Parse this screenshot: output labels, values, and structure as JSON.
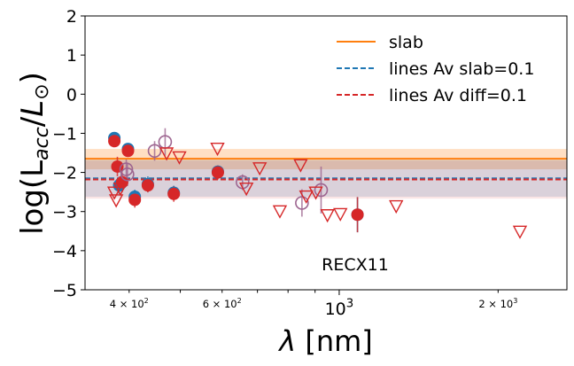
{
  "chart_data": {
    "type": "scatter",
    "title": "",
    "xlabel": "λ [nm]",
    "ylabel": "log(L_acc/L_⊙)",
    "xscale": "log",
    "xlim": [
      330,
      2700
    ],
    "ylim": [
      -5,
      2
    ],
    "yticks": [
      2,
      1,
      0,
      -1,
      -2,
      -3,
      -4,
      -5
    ],
    "ytick_labels": [
      "2",
      "1",
      "0",
      "−1",
      "−2",
      "−3",
      "−4",
      "−5"
    ],
    "xticks_major": [
      {
        "value": 1000,
        "label": "10",
        "sup": "3"
      }
    ],
    "xticks_minor_labeled": [
      {
        "value": 400,
        "label": "4 × 10",
        "sup": "2"
      },
      {
        "value": 600,
        "label": "6 × 10",
        "sup": "2"
      },
      {
        "value": 2000,
        "label": "2 × 10",
        "sup": "3"
      }
    ],
    "xticks_minor_unlabeled": [
      500,
      700,
      800,
      900
    ],
    "annotation": "RECX11",
    "grid": false,
    "legend_position": "upper right",
    "legend": [
      {
        "label": "slab",
        "style": "solid",
        "color": "#ff7f0e"
      },
      {
        "label": "lines Av slab=0.1",
        "style": "dashed",
        "color": "#1f77b4"
      },
      {
        "label": "lines Av diff=0.1",
        "style": "dashed",
        "color": "#d62728"
      }
    ],
    "bands": [
      {
        "name": "slab",
        "color": "#ff7f0e",
        "center": -1.65,
        "lower": -1.92,
        "upper": -1.4,
        "alpha": 0.25
      },
      {
        "name": "lines Av slab=0.1",
        "color": "#1f77b4",
        "center": -2.15,
        "lower": -2.62,
        "upper": -1.68,
        "alpha": 0.16
      },
      {
        "name": "lines Av diff=0.1",
        "color": "#d62728",
        "center": -2.18,
        "lower": -2.67,
        "upper": -1.7,
        "alpha": 0.12
      }
    ],
    "series": [
      {
        "color": "#1f77b4",
        "marker": "circle",
        "points": [
          {
            "x": 375,
            "y": -1.12,
            "err": 0.12
          },
          {
            "x": 383,
            "y": -2.33,
            "err": 0.22
          },
          {
            "x": 386,
            "y": -2.28,
            "err": 0.2
          },
          {
            "x": 398,
            "y": -1.4,
            "err": 0.1
          },
          {
            "x": 410,
            "y": -2.62,
            "err": 0.18
          },
          {
            "x": 434,
            "y": -2.3,
            "err": 0.2
          },
          {
            "x": 486,
            "y": -2.52,
            "err": 0.18
          },
          {
            "x": 589,
            "y": -1.98,
            "err": 0.15
          },
          {
            "x": 1083,
            "y": -3.08,
            "err": 0.45
          }
        ]
      },
      {
        "color": "#d62728",
        "marker": "circle",
        "points": [
          {
            "x": 375,
            "y": -1.2,
            "err": 0.15
          },
          {
            "x": 380,
            "y": -1.85,
            "err": 0.25
          },
          {
            "x": 388,
            "y": -2.25,
            "err": 0.25
          },
          {
            "x": 398,
            "y": -1.45,
            "err": 0.12
          },
          {
            "x": 410,
            "y": -2.7,
            "err": 0.2
          },
          {
            "x": 434,
            "y": -2.33,
            "err": 0.18
          },
          {
            "x": 486,
            "y": -2.55,
            "err": 0.2
          },
          {
            "x": 589,
            "y": -2.0,
            "err": 0.18
          },
          {
            "x": 1083,
            "y": -3.08,
            "err": 0.45
          }
        ]
      },
      {
        "color": "#9d6590",
        "marker": "open-circle",
        "points": [
          {
            "x": 395,
            "y": -1.92,
            "err": 0.25
          },
          {
            "x": 397,
            "y": -2.05,
            "err": 0.3
          },
          {
            "x": 447,
            "y": -1.45,
            "err": 0.25
          },
          {
            "x": 468,
            "y": -1.22,
            "err": 0.35
          },
          {
            "x": 656,
            "y": -2.25,
            "err": 0.2
          },
          {
            "x": 850,
            "y": -2.78,
            "err": 0.35
          },
          {
            "x": 924,
            "y": -2.45,
            "err": 0.6
          }
        ]
      },
      {
        "color": "#d62728",
        "marker": "open-triangle-down",
        "points": [
          {
            "x": 375,
            "y": -2.5
          },
          {
            "x": 378,
            "y": -2.7
          },
          {
            "x": 385,
            "y": -2.4
          },
          {
            "x": 471,
            "y": -1.5
          },
          {
            "x": 498,
            "y": -1.6
          },
          {
            "x": 588,
            "y": -1.38
          },
          {
            "x": 667,
            "y": -2.4
          },
          {
            "x": 707,
            "y": -1.88
          },
          {
            "x": 772,
            "y": -2.98
          },
          {
            "x": 845,
            "y": -1.8
          },
          {
            "x": 866,
            "y": -2.6
          },
          {
            "x": 903,
            "y": -2.5
          },
          {
            "x": 950,
            "y": -3.08
          },
          {
            "x": 1005,
            "y": -3.05
          },
          {
            "x": 1282,
            "y": -2.85
          },
          {
            "x": 2200,
            "y": -3.5
          }
        ]
      }
    ]
  }
}
